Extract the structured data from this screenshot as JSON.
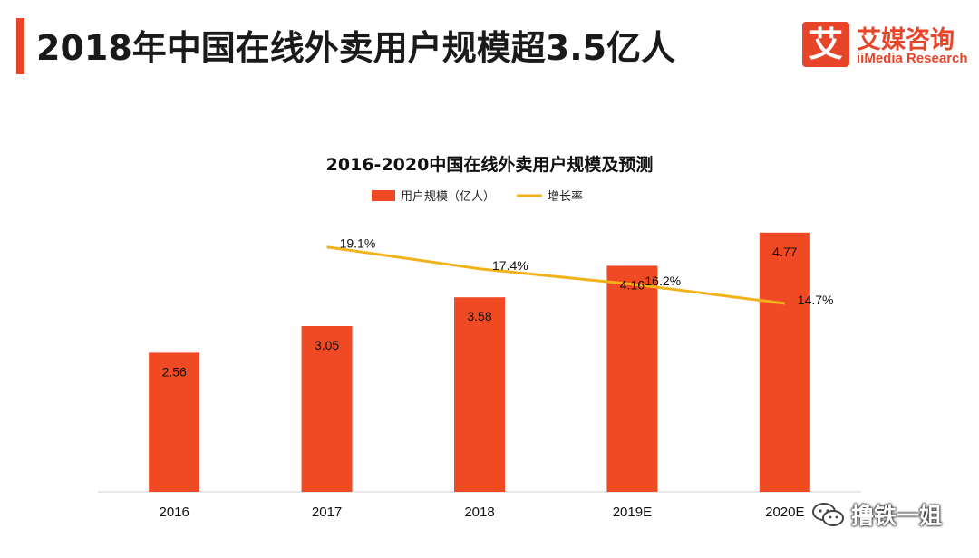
{
  "header": {
    "title": "2018年中国在线外卖用户规模超3.5亿人",
    "accent_color": "#e8442a"
  },
  "logo": {
    "mark": "艾",
    "name_cn": "艾媒咨询",
    "name_en": "iiMedia Research"
  },
  "chart_data": {
    "type": "bar",
    "title": "2016-2020中国在线外卖用户规模及预测",
    "categories": [
      "2016",
      "2017",
      "2018",
      "2019E",
      "2020E"
    ],
    "series": [
      {
        "name": "用户规模（亿人）",
        "type": "bar",
        "axis": "left",
        "color": "#f04a24",
        "values": [
          2.56,
          3.05,
          3.58,
          4.16,
          4.77
        ],
        "labels": [
          "2.56",
          "3.05",
          "3.58",
          "4.16",
          "4.77"
        ]
      },
      {
        "name": "增长率",
        "type": "line",
        "axis": "right",
        "color": "#f2b21c",
        "values": [
          null,
          19.1,
          17.4,
          16.2,
          14.7
        ],
        "labels": [
          "",
          "19.1%",
          "17.4%",
          "16.2%",
          "14.7%"
        ]
      }
    ],
    "ylim": [
      0,
      5
    ],
    "y2lim": [
      0,
      21.2
    ],
    "legend_position": "top-center",
    "grid": false
  },
  "watermark": {
    "text": "撸铁一姐",
    "icon": "wechat-icon"
  }
}
